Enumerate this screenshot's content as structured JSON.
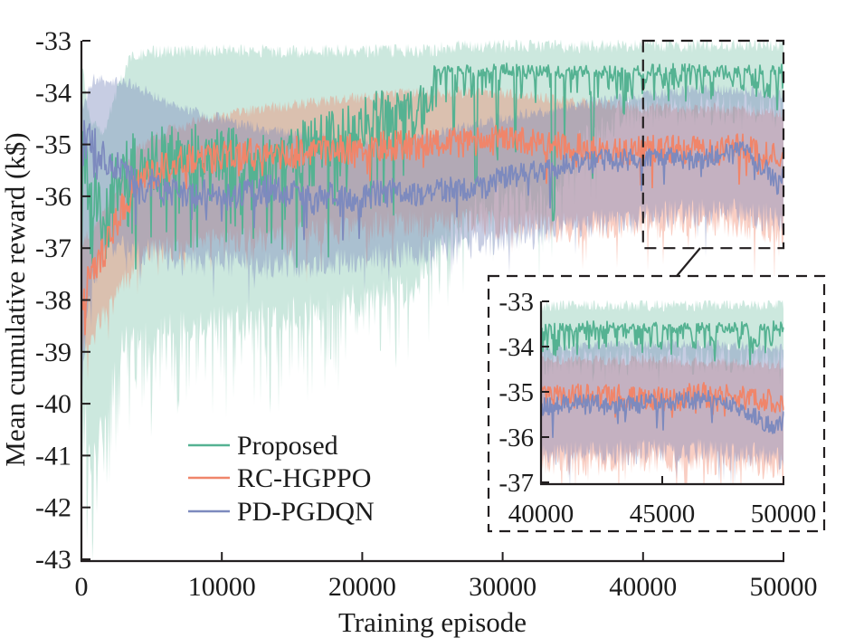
{
  "figure": {
    "background": "#ffffff",
    "axis_color": "#231f20",
    "text_color": "#1c1c1c"
  },
  "labels": {
    "xlabel": "Training episode",
    "ylabel": "Mean cumulative reward (k$)"
  },
  "legend": {
    "items": [
      {
        "label": "Proposed",
        "color": "#55b292"
      },
      {
        "label": "RC-HGPPO",
        "color": "#f0856a"
      },
      {
        "label": "PD-PGDQN",
        "color": "#7d8abe"
      }
    ]
  },
  "chart_data": {
    "type": "line",
    "title": "",
    "xlabel": "Training episode",
    "ylabel": "Mean cumulative reward (k$)",
    "xlim": [
      0,
      50000
    ],
    "ylim": [
      -43,
      -33
    ],
    "grid": false,
    "legend_position": "lower left",
    "x_ticks": [
      0,
      10000,
      20000,
      30000,
      40000,
      50000
    ],
    "x_tick_labels": [
      "0",
      "10000",
      "20000",
      "30000",
      "40000",
      "50000"
    ],
    "y_ticks": [
      -33,
      -34,
      -35,
      -36,
      -37,
      -38,
      -39,
      -40,
      -41,
      -42,
      -43
    ],
    "y_tick_labels": [
      "-33",
      "-34",
      "-35",
      "-36",
      "-37",
      "-38",
      "-39",
      "-40",
      "-41",
      "-42",
      "-43"
    ],
    "inset": {
      "xlim": [
        40000,
        50000
      ],
      "ylim": [
        -37,
        -33
      ],
      "x_ticks": [
        40000,
        45000,
        50000
      ],
      "x_tick_labels": [
        "40000",
        "45000",
        "50000"
      ],
      "y_ticks": [
        -33,
        -34,
        -35,
        -36,
        -37
      ],
      "y_tick_labels": [
        "-33",
        "-34",
        "-35",
        "-36",
        "-37"
      ]
    },
    "series": [
      {
        "name": "Proposed",
        "color": "#55b292",
        "band_alpha": 0.3,
        "seed": 3,
        "mean": [
          [
            0,
            -36.3
          ],
          [
            300,
            -35.3
          ],
          [
            700,
            -36.6
          ],
          [
            1200,
            -36.1
          ],
          [
            2000,
            -35.8
          ],
          [
            3000,
            -35.5
          ],
          [
            4500,
            -35.3
          ],
          [
            7000,
            -35.2
          ],
          [
            10000,
            -35.25
          ],
          [
            12000,
            -35.3
          ],
          [
            14000,
            -35.25
          ],
          [
            16000,
            -35.05
          ],
          [
            18000,
            -34.85
          ],
          [
            20000,
            -34.55
          ],
          [
            22000,
            -34.45
          ],
          [
            24000,
            -34.35
          ],
          [
            24900,
            -34.3
          ],
          [
            25150,
            -33.62
          ],
          [
            27000,
            -33.58
          ],
          [
            30000,
            -33.55
          ],
          [
            34000,
            -33.6
          ],
          [
            38000,
            -33.6
          ],
          [
            42000,
            -33.55
          ],
          [
            46000,
            -33.6
          ],
          [
            50000,
            -33.55
          ]
        ],
        "line_noise": [
          [
            0,
            1.5
          ],
          [
            800,
            0.9
          ],
          [
            2000,
            0.65
          ],
          [
            24900,
            0.5
          ],
          [
            25200,
            0.12
          ],
          [
            50000,
            0.12
          ]
        ],
        "line_spike_prob": [
          [
            0,
            0.2
          ],
          [
            24900,
            0.16
          ],
          [
            25300,
            0.3
          ],
          [
            31000,
            0.2
          ],
          [
            36000,
            0.25
          ],
          [
            40000,
            0.4
          ],
          [
            44500,
            0.4
          ],
          [
            44800,
            0.12
          ],
          [
            50000,
            0.12
          ]
        ],
        "line_spike_depth": [
          [
            0,
            2.2
          ],
          [
            24900,
            1.9
          ],
          [
            25300,
            0.55
          ],
          [
            50000,
            0.55
          ]
        ],
        "dips": [
          [
            26500,
            150,
            1.5
          ],
          [
            28100,
            200,
            2.4
          ],
          [
            29600,
            150,
            2.5
          ],
          [
            30900,
            120,
            1.7
          ],
          [
            33600,
            250,
            3.1
          ],
          [
            34400,
            100,
            1.4
          ],
          [
            36400,
            150,
            2.2
          ],
          [
            38600,
            120,
            1.1
          ],
          [
            44900,
            200,
            0.45
          ],
          [
            46300,
            200,
            0.4
          ],
          [
            47100,
            250,
            0.45
          ],
          [
            48200,
            150,
            0.4
          ],
          [
            48800,
            450,
            0.45
          ],
          [
            49500,
            150,
            0.4
          ]
        ],
        "band_upper": [
          [
            0,
            -33.3
          ],
          [
            600,
            -34.6
          ],
          [
            1500,
            -34.8
          ],
          [
            2500,
            -34.0
          ],
          [
            3500,
            -33.3
          ],
          [
            6000,
            -33.2
          ],
          [
            25000,
            -33.2
          ],
          [
            26000,
            -33.12
          ],
          [
            50000,
            -33.08
          ]
        ],
        "band_lower": [
          [
            0,
            -39.5
          ],
          [
            700,
            -41.0
          ],
          [
            1500,
            -40.3
          ],
          [
            3000,
            -38.8
          ],
          [
            6000,
            -38.6
          ],
          [
            10000,
            -38.4
          ],
          [
            14000,
            -38.3
          ],
          [
            18000,
            -38.1
          ],
          [
            22000,
            -37.9
          ],
          [
            25000,
            -37.3
          ],
          [
            26000,
            -36.6
          ],
          [
            28000,
            -36.2
          ],
          [
            31000,
            -36.0
          ],
          [
            33500,
            -36.1
          ],
          [
            35000,
            -35.2
          ],
          [
            36500,
            -34.8
          ],
          [
            38000,
            -34.5
          ],
          [
            40000,
            -34.35
          ],
          [
            45000,
            -34.3
          ],
          [
            50000,
            -34.25
          ]
        ],
        "band_jitter": 0.35,
        "band_spike_prob": [
          [
            0,
            0.5
          ],
          [
            3000,
            0.45
          ],
          [
            25000,
            0.35
          ],
          [
            35000,
            0.15
          ],
          [
            40000,
            0.12
          ],
          [
            50000,
            0.1
          ]
        ],
        "band_spike_depth": [
          [
            0,
            2.2
          ],
          [
            5000,
            1.8
          ],
          [
            25000,
            1.3
          ],
          [
            35000,
            1.5
          ],
          [
            40000,
            0.4
          ],
          [
            50000,
            0.35
          ]
        ]
      },
      {
        "name": "RC-HGPPO",
        "color": "#f0856a",
        "band_alpha": 0.4,
        "seed": 5,
        "mean": [
          [
            0,
            -37.9
          ],
          [
            500,
            -37.7
          ],
          [
            1000,
            -37.4
          ],
          [
            1700,
            -37.0
          ],
          [
            2300,
            -36.6
          ],
          [
            3000,
            -36.2
          ],
          [
            3700,
            -35.9
          ],
          [
            4500,
            -35.65
          ],
          [
            5500,
            -35.5
          ],
          [
            7000,
            -35.35
          ],
          [
            9000,
            -35.25
          ],
          [
            12000,
            -35.2
          ],
          [
            15000,
            -35.15
          ],
          [
            18000,
            -35.1
          ],
          [
            21000,
            -35.05
          ],
          [
            24000,
            -35.0
          ],
          [
            27000,
            -34.95
          ],
          [
            30000,
            -34.9
          ],
          [
            32500,
            -34.95
          ],
          [
            34500,
            -35.05
          ],
          [
            36500,
            -35.1
          ],
          [
            38500,
            -35.15
          ],
          [
            41000,
            -35.1
          ],
          [
            43000,
            -35.1
          ],
          [
            45000,
            -35.15
          ],
          [
            47000,
            -35.05
          ],
          [
            48500,
            -35.15
          ],
          [
            50000,
            -35.2
          ]
        ],
        "line_noise": [
          [
            0,
            0.38
          ],
          [
            3000,
            0.32
          ],
          [
            50000,
            0.27
          ]
        ],
        "line_spike_prob": [
          [
            0,
            0.06
          ],
          [
            50000,
            0.04
          ]
        ],
        "line_spike_depth": [
          [
            0,
            0.8
          ],
          [
            50000,
            0.6
          ]
        ],
        "dips": [],
        "band_upper": [
          [
            0,
            -36.9
          ],
          [
            1500,
            -36.4
          ],
          [
            2500,
            -35.8
          ],
          [
            4000,
            -35.1
          ],
          [
            6000,
            -34.75
          ],
          [
            9000,
            -34.5
          ],
          [
            13000,
            -34.3
          ],
          [
            18000,
            -34.15
          ],
          [
            24000,
            -34.0
          ],
          [
            30000,
            -34.0
          ],
          [
            34000,
            -34.15
          ],
          [
            40000,
            -34.3
          ],
          [
            45000,
            -34.3
          ],
          [
            50000,
            -34.4
          ]
        ],
        "band_lower": [
          [
            0,
            -38.9
          ],
          [
            1000,
            -38.6
          ],
          [
            2000,
            -38.2
          ],
          [
            3500,
            -37.5
          ],
          [
            5000,
            -37.1
          ],
          [
            8000,
            -36.9
          ],
          [
            12000,
            -36.85
          ],
          [
            16000,
            -36.75
          ],
          [
            20000,
            -36.6
          ],
          [
            25000,
            -36.5
          ],
          [
            30000,
            -36.55
          ],
          [
            35000,
            -36.6
          ],
          [
            40000,
            -36.55
          ],
          [
            45000,
            -36.5
          ],
          [
            50000,
            -36.65
          ]
        ],
        "band_jitter": 0.3,
        "band_spike_prob": [
          [
            0,
            0.1
          ],
          [
            20000,
            0.07
          ],
          [
            28000,
            0.1
          ],
          [
            50000,
            0.1
          ]
        ],
        "band_spike_depth": [
          [
            0,
            0.9
          ],
          [
            20000,
            0.6
          ],
          [
            28000,
            0.9
          ],
          [
            50000,
            0.85
          ]
        ]
      },
      {
        "name": "PD-PGDQN",
        "color": "#7d8abe",
        "band_alpha": 0.43,
        "seed": 7,
        "mean": [
          [
            0,
            -34.3
          ],
          [
            250,
            -34.55
          ],
          [
            600,
            -34.9
          ],
          [
            1100,
            -35.1
          ],
          [
            1800,
            -35.3
          ],
          [
            2600,
            -35.45
          ],
          [
            3400,
            -35.6
          ],
          [
            4200,
            -35.9
          ],
          [
            5000,
            -35.75
          ],
          [
            6000,
            -35.9
          ],
          [
            7500,
            -36.0
          ],
          [
            9000,
            -35.9
          ],
          [
            10500,
            -36.0
          ],
          [
            12000,
            -35.95
          ],
          [
            13500,
            -35.85
          ],
          [
            15000,
            -35.95
          ],
          [
            16500,
            -36.1
          ],
          [
            18000,
            -35.95
          ],
          [
            19500,
            -36.05
          ],
          [
            21000,
            -35.95
          ],
          [
            22500,
            -35.9
          ],
          [
            24000,
            -35.95
          ],
          [
            25500,
            -35.9
          ],
          [
            27000,
            -35.85
          ],
          [
            28500,
            -35.85
          ],
          [
            30000,
            -35.65
          ],
          [
            31500,
            -35.55
          ],
          [
            33000,
            -35.5
          ],
          [
            34500,
            -35.4
          ],
          [
            36000,
            -35.35
          ],
          [
            38000,
            -35.3
          ],
          [
            40000,
            -35.3
          ],
          [
            41500,
            -35.25
          ],
          [
            43000,
            -35.3
          ],
          [
            44500,
            -35.25
          ],
          [
            45800,
            -35.2
          ],
          [
            47200,
            -35.15
          ],
          [
            48000,
            -35.3
          ],
          [
            48800,
            -35.5
          ],
          [
            49300,
            -35.7
          ],
          [
            49700,
            -35.8
          ],
          [
            50000,
            -35.6
          ]
        ],
        "line_noise": [
          [
            0,
            1.6
          ],
          [
            400,
            0.5
          ],
          [
            1500,
            0.3
          ],
          [
            50000,
            0.2
          ]
        ],
        "line_spike_prob": [
          [
            0,
            0.3
          ],
          [
            500,
            0.05
          ],
          [
            50000,
            0.03
          ]
        ],
        "line_spike_depth": [
          [
            0,
            3.8
          ],
          [
            500,
            0.8
          ],
          [
            50000,
            0.5
          ]
        ],
        "dips": [],
        "band_upper": [
          [
            0,
            -34.3
          ],
          [
            900,
            -33.75
          ],
          [
            3800,
            -33.85
          ],
          [
            6000,
            -34.2
          ],
          [
            9000,
            -34.45
          ],
          [
            12000,
            -34.65
          ],
          [
            16000,
            -34.85
          ],
          [
            20000,
            -34.95
          ],
          [
            24000,
            -34.85
          ],
          [
            27000,
            -34.7
          ],
          [
            30000,
            -34.5
          ],
          [
            33000,
            -34.35
          ],
          [
            36000,
            -34.2
          ],
          [
            40000,
            -34.05
          ],
          [
            44000,
            -33.95
          ],
          [
            47000,
            -33.95
          ],
          [
            50000,
            -34.05
          ]
        ],
        "band_lower": [
          [
            0,
            -39.3
          ],
          [
            800,
            -37.6
          ],
          [
            2000,
            -37.0
          ],
          [
            4000,
            -37.0
          ],
          [
            7000,
            -37.25
          ],
          [
            10000,
            -37.3
          ],
          [
            14000,
            -37.35
          ],
          [
            18000,
            -37.25
          ],
          [
            22000,
            -37.15
          ],
          [
            26000,
            -37.0
          ],
          [
            30000,
            -36.85
          ],
          [
            34000,
            -36.65
          ],
          [
            38000,
            -36.5
          ],
          [
            42000,
            -36.35
          ],
          [
            46000,
            -36.3
          ],
          [
            50000,
            -36.45
          ]
        ],
        "band_jitter": 0.3,
        "band_spike_prob": [
          [
            0,
            0.35
          ],
          [
            1200,
            0.06
          ],
          [
            50000,
            0.05
          ]
        ],
        "band_spike_depth": [
          [
            0,
            2.2
          ],
          [
            1200,
            0.7
          ],
          [
            50000,
            0.6
          ]
        ]
      }
    ]
  }
}
